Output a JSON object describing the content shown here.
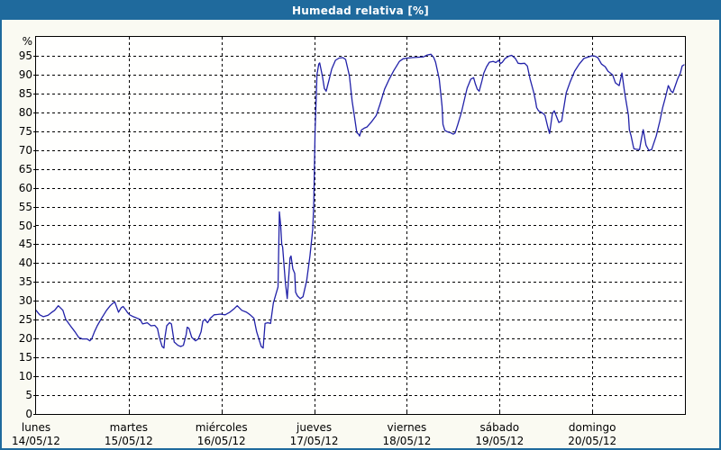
{
  "window": {
    "title": "Humedad relativa [%]"
  },
  "colors": {
    "titlebar": "#1f6a9d",
    "frame": "#1f6a9d",
    "page_background": "#fafaf2",
    "plot_background": "#fffffe",
    "grid": "#000000",
    "text": "#000000",
    "line": "#2121a8"
  },
  "chart_data": {
    "type": "line",
    "title": "Humedad relativa [%]",
    "y_unit_label": "%",
    "ylabel": "Humedad relativa",
    "y_min": 0,
    "y_max": 100,
    "y_tick_step": 5,
    "y_tick_labels": [
      "0",
      "5",
      "10",
      "15",
      "20",
      "25",
      "30",
      "35",
      "40",
      "45",
      "50",
      "55",
      "60",
      "65",
      "70",
      "75",
      "80",
      "85",
      "90",
      "95"
    ],
    "grid": "dashed",
    "legend": "none",
    "x_days": [
      {
        "name": "lunes",
        "date": "14/05/12"
      },
      {
        "name": "martes",
        "date": "15/05/12"
      },
      {
        "name": "miércoles",
        "date": "16/05/12"
      },
      {
        "name": "jueves",
        "date": "17/05/12"
      },
      {
        "name": "viernes",
        "date": "18/05/12"
      },
      {
        "name": "sábado",
        "date": "19/05/12"
      },
      {
        "name": "domingo",
        "date": "20/05/12"
      }
    ],
    "series": [
      {
        "name": "Humedad relativa [%]",
        "x_unit": "days_from_start",
        "points": [
          [
            0,
            27.5
          ],
          [
            0.04,
            26.3
          ],
          [
            0.08,
            25.8
          ],
          [
            0.13,
            26.2
          ],
          [
            0.16,
            26.8
          ],
          [
            0.2,
            27.5
          ],
          [
            0.24,
            28.7
          ],
          [
            0.29,
            27.5
          ],
          [
            0.32,
            25.1
          ],
          [
            0.37,
            23.4
          ],
          [
            0.42,
            21.8
          ],
          [
            0.46,
            20.3
          ],
          [
            0.5,
            19.9
          ],
          [
            0.55,
            19.9
          ],
          [
            0.58,
            19.4
          ],
          [
            0.6,
            19.9
          ],
          [
            0.63,
            21.8
          ],
          [
            0.66,
            23.4
          ],
          [
            0.7,
            25.1
          ],
          [
            0.73,
            26.3
          ],
          [
            0.76,
            27.5
          ],
          [
            0.8,
            28.7
          ],
          [
            0.83,
            29.4
          ],
          [
            0.85,
            29.7
          ],
          [
            0.875,
            28
          ],
          [
            0.89,
            27
          ],
          [
            0.92,
            28.2
          ],
          [
            0.94,
            28.5
          ],
          [
            0.97,
            27.5
          ],
          [
            0.99,
            26.8
          ],
          [
            1.01,
            26.3
          ],
          [
            1.05,
            25.8
          ],
          [
            1.12,
            25.1
          ],
          [
            1.15,
            23.9
          ],
          [
            1.2,
            24.2
          ],
          [
            1.24,
            23.4
          ],
          [
            1.28,
            23.5
          ],
          [
            1.31,
            22.7
          ],
          [
            1.33,
            20.3
          ],
          [
            1.36,
            17.9
          ],
          [
            1.38,
            17.5
          ],
          [
            1.39,
            20.3
          ],
          [
            1.41,
            23.4
          ],
          [
            1.44,
            24.2
          ],
          [
            1.46,
            23.9
          ],
          [
            1.49,
            19.1
          ],
          [
            1.53,
            18.2
          ],
          [
            1.56,
            17.9
          ],
          [
            1.59,
            18.2
          ],
          [
            1.62,
            21.1
          ],
          [
            1.63,
            23
          ],
          [
            1.65,
            22.7
          ],
          [
            1.68,
            20.3
          ],
          [
            1.72,
            19.4
          ],
          [
            1.75,
            19.9
          ],
          [
            1.78,
            21.8
          ],
          [
            1.8,
            24.6
          ],
          [
            1.82,
            25.1
          ],
          [
            1.85,
            24.2
          ],
          [
            1.88,
            25.4
          ],
          [
            1.92,
            26.3
          ],
          [
            1.96,
            26.4
          ],
          [
            1.99,
            26.5
          ],
          [
            2.04,
            26.3
          ],
          [
            2.09,
            27
          ],
          [
            2.14,
            28
          ],
          [
            2.17,
            28.7
          ],
          [
            2.22,
            27.5
          ],
          [
            2.27,
            27
          ],
          [
            2.31,
            26.3
          ],
          [
            2.35,
            25.4
          ],
          [
            2.38,
            21.8
          ],
          [
            2.41,
            19.4
          ],
          [
            2.43,
            17.9
          ],
          [
            2.45,
            17.5
          ],
          [
            2.47,
            24
          ],
          [
            2.5,
            24.2
          ],
          [
            2.53,
            24
          ],
          [
            2.56,
            29.4
          ],
          [
            2.59,
            32
          ],
          [
            2.61,
            33.7
          ],
          [
            2.625,
            53.6
          ],
          [
            2.64,
            49.8
          ],
          [
            2.65,
            45
          ],
          [
            2.66,
            44.3
          ],
          [
            2.69,
            34.7
          ],
          [
            2.71,
            30.6
          ],
          [
            2.74,
            41.4
          ],
          [
            2.75,
            41.9
          ],
          [
            2.77,
            38.5
          ],
          [
            2.79,
            37.3
          ],
          [
            2.8,
            32.3
          ],
          [
            2.82,
            31.3
          ],
          [
            2.85,
            30.6
          ],
          [
            2.88,
            31.1
          ],
          [
            2.92,
            35.4
          ],
          [
            2.955,
            41.9
          ],
          [
            2.985,
            49
          ],
          [
            2.995,
            55.3
          ],
          [
            3.01,
            75
          ],
          [
            3.03,
            90
          ],
          [
            3.05,
            92.8
          ],
          [
            3.06,
            93.1
          ],
          [
            3.09,
            89.5
          ],
          [
            3.11,
            86.3
          ],
          [
            3.13,
            85.6
          ],
          [
            3.16,
            88.5
          ],
          [
            3.19,
            91.5
          ],
          [
            3.23,
            93.8
          ],
          [
            3.27,
            94.4
          ],
          [
            3.31,
            94.5
          ],
          [
            3.34,
            94
          ],
          [
            3.38,
            89.7
          ],
          [
            3.41,
            83
          ],
          [
            3.43,
            79.7
          ],
          [
            3.46,
            74.6
          ],
          [
            3.48,
            74.2
          ],
          [
            3.49,
            73.7
          ],
          [
            3.51,
            75.3
          ],
          [
            3.54,
            75.8
          ],
          [
            3.57,
            76.1
          ],
          [
            3.62,
            77.5
          ],
          [
            3.67,
            79.2
          ],
          [
            3.71,
            82.1
          ],
          [
            3.76,
            86.1
          ],
          [
            3.81,
            88.8
          ],
          [
            3.86,
            91.1
          ],
          [
            3.92,
            93.5
          ],
          [
            3.96,
            94.2
          ],
          [
            4.01,
            94.4
          ],
          [
            4.06,
            94.5
          ],
          [
            4.12,
            94.6
          ],
          [
            4.18,
            94.7
          ],
          [
            4.22,
            95.2
          ],
          [
            4.26,
            95.4
          ],
          [
            4.29,
            94.5
          ],
          [
            4.31,
            93.3
          ],
          [
            4.35,
            88.8
          ],
          [
            4.38,
            81.6
          ],
          [
            4.39,
            76.8
          ],
          [
            4.41,
            75.2
          ],
          [
            4.44,
            74.8
          ],
          [
            4.47,
            74.6
          ],
          [
            4.5,
            74.2
          ],
          [
            4.52,
            74.5
          ],
          [
            4.55,
            76.8
          ],
          [
            4.59,
            80.1
          ],
          [
            4.62,
            83.3
          ],
          [
            4.65,
            86.4
          ],
          [
            4.69,
            88.8
          ],
          [
            4.72,
            89.2
          ],
          [
            4.74,
            87.5
          ],
          [
            4.76,
            86.1
          ],
          [
            4.78,
            85.6
          ],
          [
            4.81,
            88.3
          ],
          [
            4.83,
            90.4
          ],
          [
            4.86,
            92.1
          ],
          [
            4.89,
            93.3
          ],
          [
            4.93,
            93.5
          ],
          [
            4.96,
            93.2
          ],
          [
            4.99,
            93.8
          ],
          [
            5.01,
            92.9
          ],
          [
            5.03,
            93.3
          ],
          [
            5.06,
            94.3
          ],
          [
            5.1,
            94.9
          ],
          [
            5.13,
            95.1
          ],
          [
            5.17,
            94.3
          ],
          [
            5.2,
            93
          ],
          [
            5.23,
            92.9
          ],
          [
            5.27,
            93
          ],
          [
            5.3,
            92.3
          ],
          [
            5.33,
            88.8
          ],
          [
            5.37,
            85.2
          ],
          [
            5.39,
            82.8
          ],
          [
            5.4,
            81.3
          ],
          [
            5.42,
            80.4
          ],
          [
            5.47,
            79.7
          ],
          [
            5.49,
            79.2
          ],
          [
            5.52,
            76.1
          ],
          [
            5.54,
            74.4
          ],
          [
            5.57,
            79.7
          ],
          [
            5.59,
            80.4
          ],
          [
            5.62,
            78.5
          ],
          [
            5.64,
            77.3
          ],
          [
            5.67,
            77.7
          ],
          [
            5.72,
            85.2
          ],
          [
            5.76,
            88
          ],
          [
            5.81,
            90.9
          ],
          [
            5.86,
            92.8
          ],
          [
            5.91,
            94.3
          ],
          [
            5.96,
            94.7
          ],
          [
            6,
            95
          ],
          [
            6.03,
            94.9
          ],
          [
            6.06,
            94.5
          ],
          [
            6.1,
            92.8
          ],
          [
            6.14,
            92.1
          ],
          [
            6.17,
            90.9
          ],
          [
            6.22,
            89.9
          ],
          [
            6.25,
            87.8
          ],
          [
            6.29,
            87.1
          ],
          [
            6.32,
            90.4
          ],
          [
            6.35,
            85.2
          ],
          [
            6.39,
            79.2
          ],
          [
            6.4,
            75.4
          ],
          [
            6.42,
            73.7
          ],
          [
            6.44,
            71.3
          ],
          [
            6.45,
            70.3
          ],
          [
            6.48,
            70.2
          ],
          [
            6.51,
            70.1
          ],
          [
            6.53,
            73
          ],
          [
            6.55,
            75.4
          ],
          [
            6.58,
            71.3
          ],
          [
            6.61,
            69.9
          ],
          [
            6.64,
            70.1
          ],
          [
            6.69,
            73.7
          ],
          [
            6.73,
            77.7
          ],
          [
            6.76,
            81.3
          ],
          [
            6.79,
            84
          ],
          [
            6.82,
            87.1
          ],
          [
            6.85,
            85.6
          ],
          [
            6.87,
            85.2
          ],
          [
            6.92,
            88.8
          ],
          [
            6.95,
            90.4
          ],
          [
            6.97,
            92.3
          ],
          [
            6.99,
            92.6
          ]
        ]
      }
    ]
  }
}
